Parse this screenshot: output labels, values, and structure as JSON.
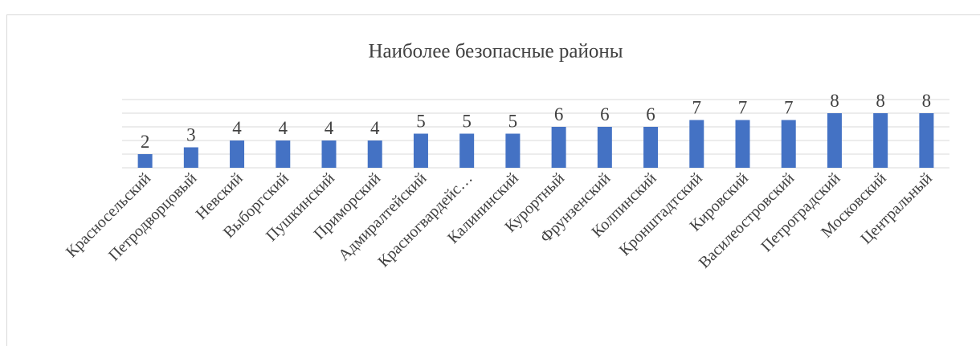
{
  "chart_data": {
    "type": "bar",
    "title": "Наиболее безопасные районы",
    "categories": [
      "Красносельский",
      "Петродворцовый",
      "Невский",
      "Выборгский",
      "Пушкинский",
      "Приморский",
      "Адмиралтейский",
      "Красногвардейс…",
      "Калининский",
      "Курортный",
      "Фрунзенский",
      "Колпинский",
      "Кронштадтский",
      "Кировский",
      "Василеостровский",
      "Петроградский",
      "Московский",
      "Центральный"
    ],
    "values": [
      2,
      3,
      4,
      4,
      4,
      4,
      5,
      5,
      5,
      6,
      6,
      6,
      7,
      7,
      7,
      8,
      8,
      8
    ],
    "color": "#4472c4",
    "ylim": [
      0,
      10
    ],
    "yticks": [
      0,
      2,
      4,
      6,
      8,
      10
    ],
    "grid": true
  }
}
